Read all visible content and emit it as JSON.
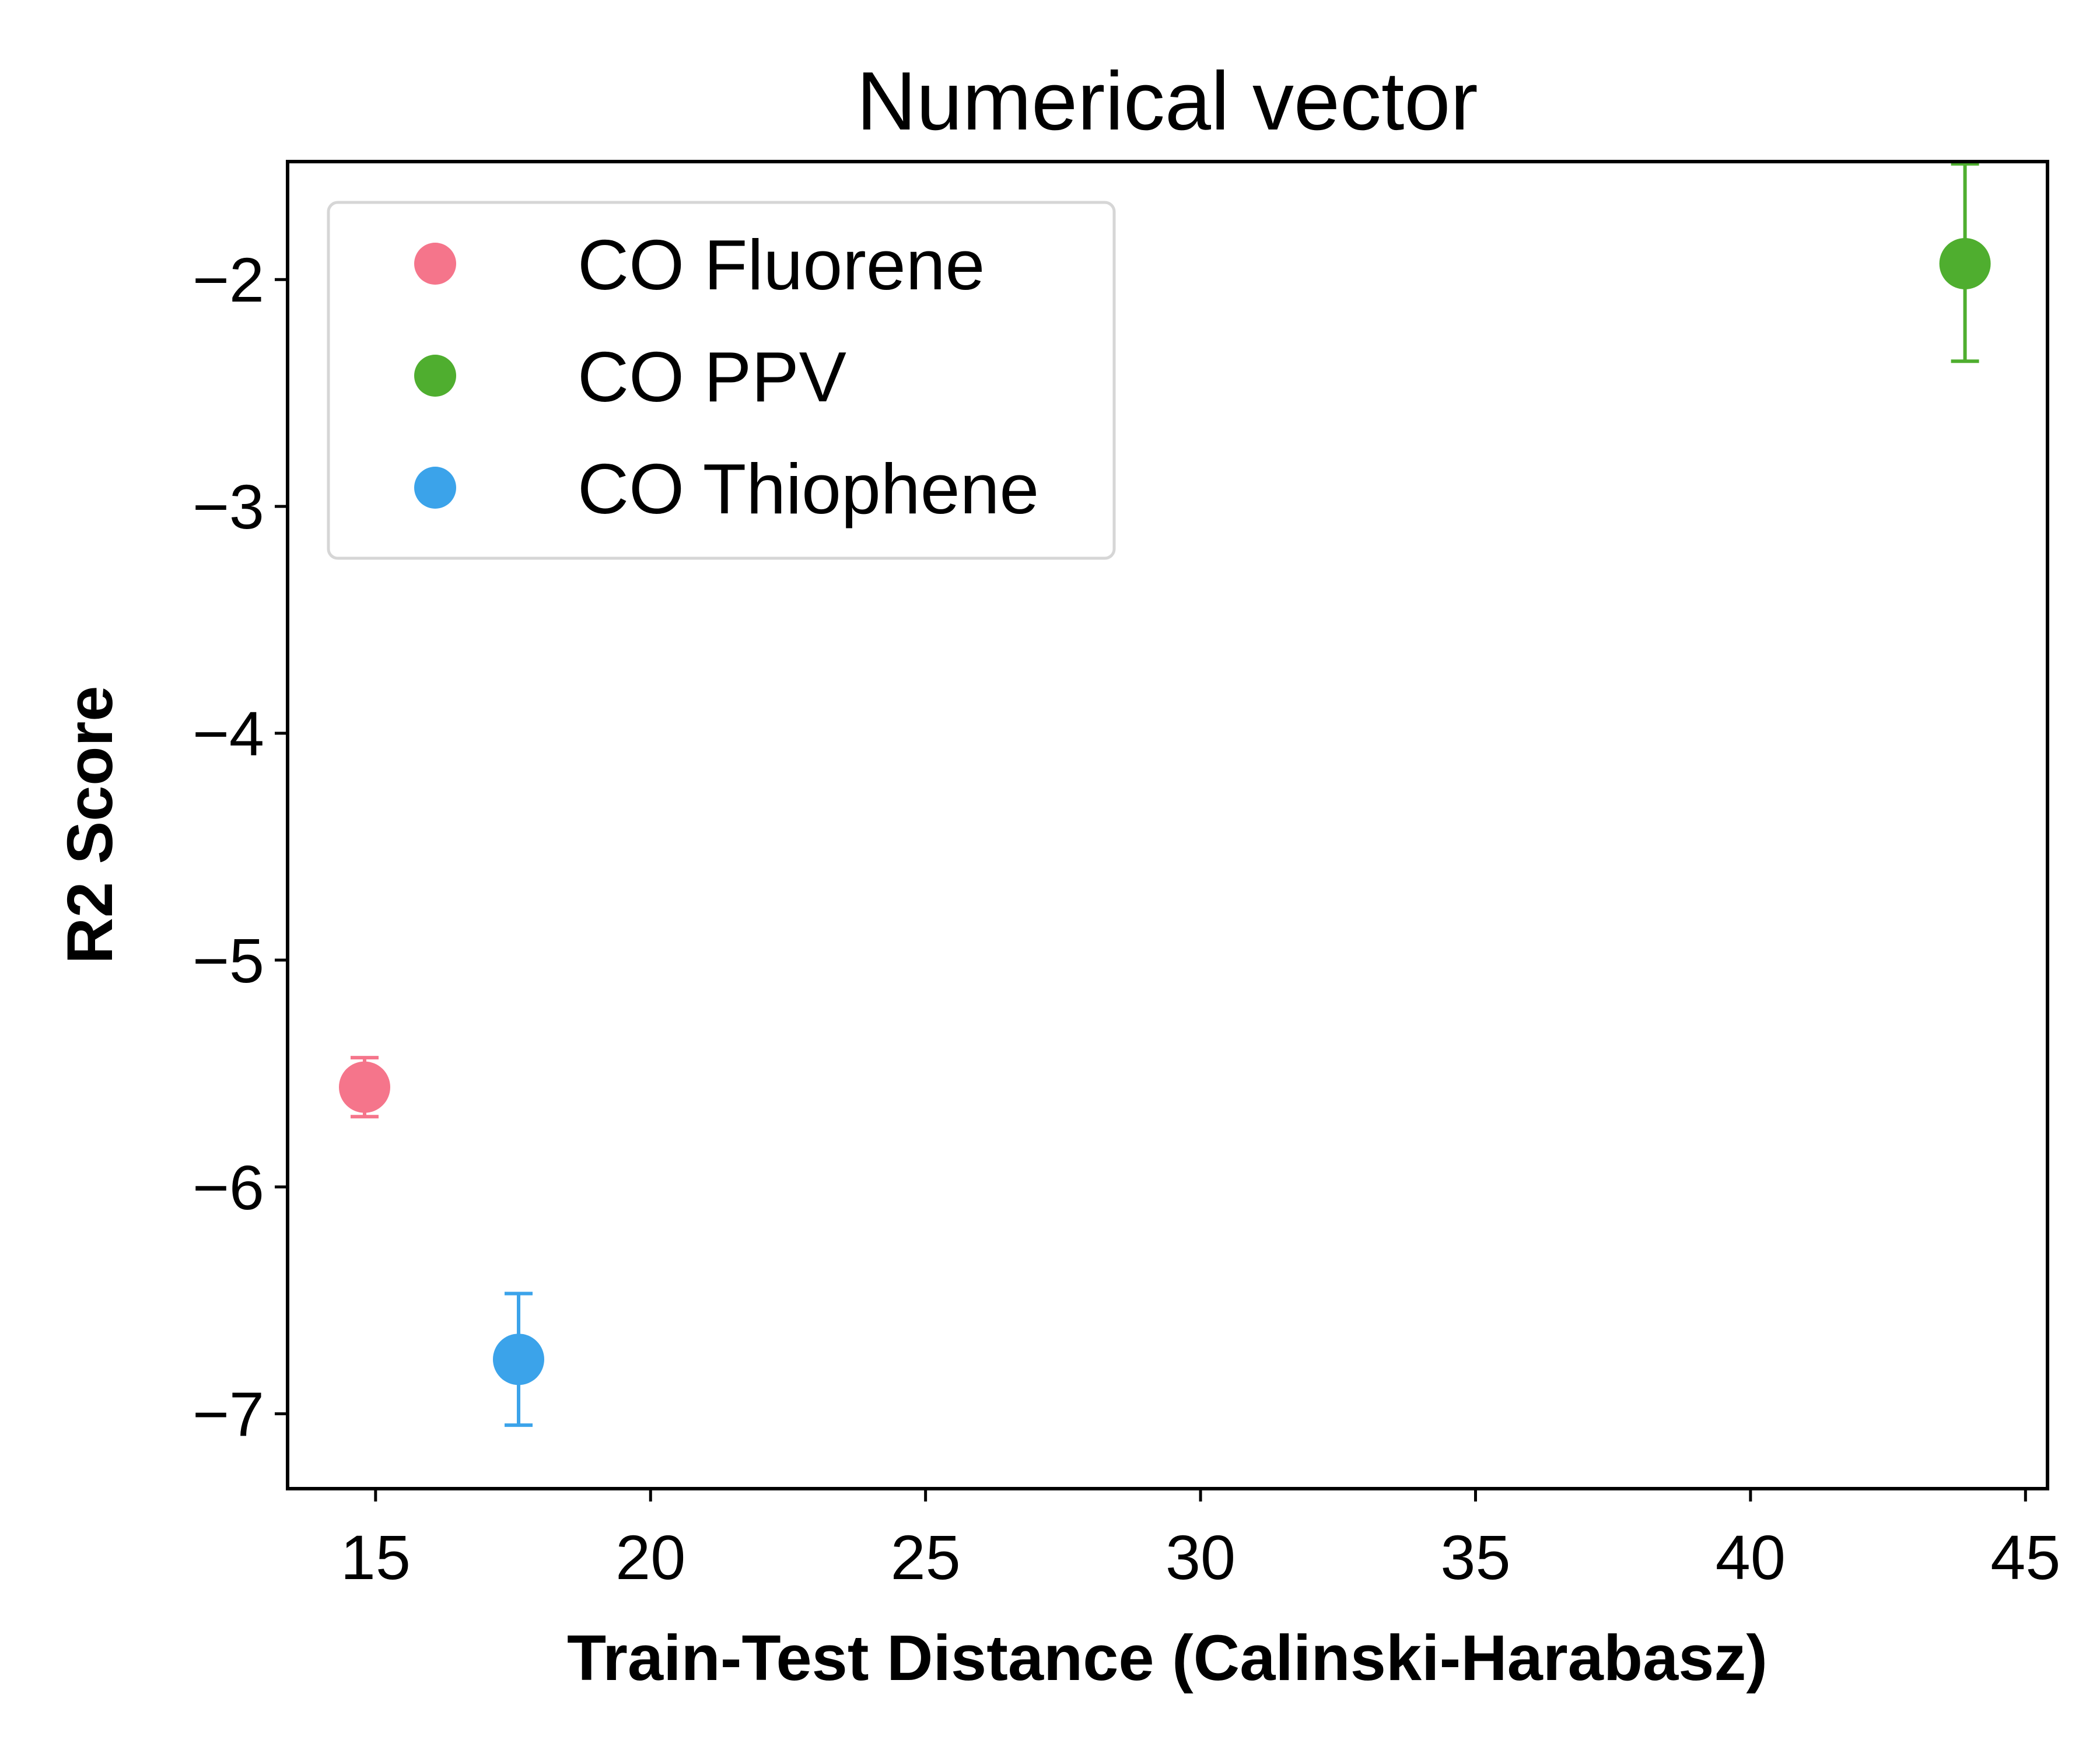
{
  "chart_data": {
    "type": "scatter",
    "title": "Numerical vector",
    "xlabel": "Train-Test Distance (Calinski-Harabasz)",
    "ylabel": "R2 Score",
    "xlim": [
      13.4,
      45.4
    ],
    "ylim": [
      -7.33,
      -1.48
    ],
    "x_ticks": [
      15,
      20,
      25,
      30,
      35,
      40,
      45
    ],
    "x_tick_labels": [
      "15",
      "20",
      "25",
      "30",
      "35",
      "40",
      "45"
    ],
    "y_ticks": [
      -2,
      -3,
      -4,
      -5,
      -6,
      -7
    ],
    "y_tick_labels": [
      "−2",
      "−3",
      "−4",
      "−5",
      "−6",
      "−7"
    ],
    "grid": false,
    "legend_position": "top-left",
    "series": [
      {
        "name": "CO Fluorene",
        "color": "#f5758b",
        "x": [
          14.8
        ],
        "y": [
          -5.56
        ],
        "err_low": [
          -5.69
        ],
        "err_high": [
          -5.43
        ]
      },
      {
        "name": "CO PPV",
        "color": "#4fae2f",
        "x": [
          43.9
        ],
        "y": [
          -1.93
        ],
        "err_low": [
          -2.36
        ],
        "err_high": [
          -1.49
        ]
      },
      {
        "name": "CO Thiophene",
        "color": "#3ba3ea",
        "x": [
          17.6
        ],
        "y": [
          -6.76
        ],
        "err_low": [
          -7.05
        ],
        "err_high": [
          -6.47
        ]
      }
    ]
  }
}
